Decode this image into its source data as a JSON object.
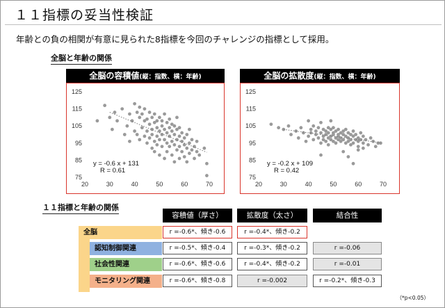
{
  "title": "１１指標の妥当性検証",
  "subtitle": "年齢との負の相関が有意に見られた8指標を今回のチャレンジの指標として採用。",
  "section1_label": "全脳と年齢の関係",
  "section2_label": "１１指標と年齢の関係",
  "charts": [
    {
      "title_main": "全脳の容積値",
      "title_sub": "(縦：指数、横：年齢)",
      "equation": "y = -0.6 x + 131",
      "r_text": "R = 0.61"
    },
    {
      "title_main": "全脳の拡散度",
      "title_sub": "(縦：指数、横：年齢)",
      "equation": "y = -0.2 x + 109",
      "r_text": "R = 0.42"
    }
  ],
  "chart_data": [
    {
      "type": "scatter",
      "title": "全脳の容積値(縦：指数、横：年齢)",
      "xlabel": "",
      "ylabel": "",
      "xlim": [
        20,
        70
      ],
      "ylim": [
        75,
        125
      ],
      "xticks": [
        20,
        30,
        40,
        50,
        60,
        70
      ],
      "yticks": [
        75,
        85,
        95,
        105,
        115,
        125
      ],
      "trendline": {
        "slope": -0.6,
        "intercept": 131,
        "style": "dotted"
      },
      "points": [
        [
          25,
          108
        ],
        [
          28,
          117
        ],
        [
          30,
          110
        ],
        [
          31,
          103
        ],
        [
          32,
          113
        ],
        [
          33,
          108
        ],
        [
          35,
          115
        ],
        [
          36,
          100
        ],
        [
          37,
          105
        ],
        [
          38,
          96
        ],
        [
          38,
          112
        ],
        [
          39,
          108
        ],
        [
          40,
          118
        ],
        [
          40,
          102
        ],
        [
          41,
          113
        ],
        [
          41,
          100
        ],
        [
          42,
          110
        ],
        [
          42,
          97
        ],
        [
          42,
          116
        ],
        [
          43,
          104
        ],
        [
          43,
          112
        ],
        [
          44,
          99
        ],
        [
          44,
          108
        ],
        [
          44,
          115
        ],
        [
          45,
          102
        ],
        [
          45,
          95
        ],
        [
          45,
          109
        ],
        [
          46,
          106
        ],
        [
          46,
          113
        ],
        [
          46,
          98
        ],
        [
          47,
          103
        ],
        [
          47,
          92
        ],
        [
          47,
          110
        ],
        [
          47,
          100
        ],
        [
          48,
          107
        ],
        [
          48,
          96
        ],
        [
          48,
          112
        ],
        [
          48,
          90
        ],
        [
          49,
          104
        ],
        [
          49,
          99
        ],
        [
          49,
          108
        ],
        [
          49,
          94
        ],
        [
          50,
          102
        ],
        [
          50,
          97
        ],
        [
          50,
          110
        ],
        [
          50,
          88
        ],
        [
          51,
          105
        ],
        [
          51,
          100
        ],
        [
          51,
          93
        ],
        [
          51,
          108
        ],
        [
          52,
          103
        ],
        [
          52,
          97
        ],
        [
          52,
          86
        ],
        [
          52,
          112
        ],
        [
          53,
          101
        ],
        [
          53,
          95
        ],
        [
          53,
          107
        ],
        [
          53,
          90
        ],
        [
          54,
          104
        ],
        [
          54,
          99
        ],
        [
          54,
          93
        ],
        [
          54,
          109
        ],
        [
          55,
          102
        ],
        [
          55,
          96
        ],
        [
          55,
          88
        ],
        [
          55,
          106
        ],
        [
          56,
          100
        ],
        [
          56,
          94
        ],
        [
          56,
          84
        ],
        [
          56,
          105
        ],
        [
          57,
          103
        ],
        [
          57,
          97
        ],
        [
          57,
          91
        ],
        [
          57,
          110
        ],
        [
          58,
          99
        ],
        [
          58,
          93
        ],
        [
          58,
          86
        ],
        [
          58,
          104
        ],
        [
          59,
          96
        ],
        [
          59,
          101
        ],
        [
          59,
          90
        ],
        [
          60,
          94
        ],
        [
          60,
          98
        ],
        [
          60,
          87
        ],
        [
          61,
          92
        ],
        [
          61,
          100
        ],
        [
          61,
          84
        ],
        [
          62,
          95
        ],
        [
          62,
          89
        ],
        [
          62,
          103
        ],
        [
          63,
          91
        ],
        [
          63,
          97
        ],
        [
          64,
          86
        ],
        [
          64,
          93
        ],
        [
          65,
          90
        ],
        [
          65,
          96
        ],
        [
          66,
          88
        ],
        [
          68,
          92
        ],
        [
          69,
          83
        ],
        [
          69,
          76
        ]
      ]
    },
    {
      "type": "scatter",
      "title": "全脳の拡散度(縦：指数、横：年齢)",
      "xlabel": "",
      "ylabel": "",
      "xlim": [
        20,
        70
      ],
      "ylim": [
        75,
        125
      ],
      "xticks": [
        20,
        30,
        40,
        50,
        60,
        70
      ],
      "yticks": [
        75,
        85,
        95,
        105,
        115,
        125
      ],
      "trendline": {
        "slope": -0.2,
        "intercept": 109,
        "style": "dotted"
      },
      "points": [
        [
          25,
          106
        ],
        [
          28,
          104
        ],
        [
          30,
          103
        ],
        [
          32,
          105
        ],
        [
          33,
          100
        ],
        [
          35,
          102
        ],
        [
          36,
          98
        ],
        [
          37,
          104
        ],
        [
          38,
          101
        ],
        [
          39,
          96
        ],
        [
          40,
          108
        ],
        [
          40,
          99
        ],
        [
          41,
          103
        ],
        [
          41,
          101
        ],
        [
          42,
          97
        ],
        [
          42,
          105
        ],
        [
          43,
          100
        ],
        [
          43,
          102
        ],
        [
          44,
          98
        ],
        [
          44,
          104
        ],
        [
          45,
          101
        ],
        [
          45,
          95
        ],
        [
          45,
          107
        ],
        [
          46,
          99
        ],
        [
          46,
          103
        ],
        [
          46,
          97
        ],
        [
          47,
          100
        ],
        [
          47,
          102
        ],
        [
          47,
          96
        ],
        [
          48,
          104
        ],
        [
          48,
          98
        ],
        [
          48,
          101
        ],
        [
          48,
          94
        ],
        [
          49,
          99
        ],
        [
          49,
          103
        ],
        [
          49,
          97
        ],
        [
          49,
          108
        ],
        [
          50,
          101
        ],
        [
          50,
          96
        ],
        [
          50,
          100
        ],
        [
          50,
          104
        ],
        [
          51,
          98
        ],
        [
          51,
          102
        ],
        [
          51,
          95
        ],
        [
          52,
          100
        ],
        [
          52,
          97
        ],
        [
          52,
          103
        ],
        [
          52,
          99
        ],
        [
          53,
          101
        ],
        [
          53,
          96
        ],
        [
          53,
          98
        ],
        [
          54,
          102
        ],
        [
          54,
          97
        ],
        [
          54,
          100
        ],
        [
          55,
          95
        ],
        [
          55,
          99
        ],
        [
          55,
          103
        ],
        [
          56,
          98
        ],
        [
          56,
          101
        ],
        [
          56,
          96
        ],
        [
          57,
          100
        ],
        [
          57,
          94
        ],
        [
          57,
          97
        ],
        [
          58,
          99
        ],
        [
          58,
          102
        ],
        [
          58,
          95
        ],
        [
          59,
          97
        ],
        [
          59,
          100
        ],
        [
          60,
          96
        ],
        [
          60,
          98
        ],
        [
          60,
          93
        ],
        [
          61,
          101
        ],
        [
          61,
          97
        ],
        [
          62,
          95
        ],
        [
          62,
          99
        ],
        [
          63,
          97
        ],
        [
          64,
          94
        ],
        [
          65,
          98
        ],
        [
          66,
          96
        ],
        [
          67,
          93
        ],
        [
          68,
          95
        ],
        [
          69,
          95
        ],
        [
          56,
          87
        ],
        [
          58,
          83
        ],
        [
          54,
          90
        ],
        [
          62,
          92
        ],
        [
          45,
          88
        ],
        [
          60,
          91
        ]
      ]
    }
  ],
  "table": {
    "headers": [
      "容積値（厚さ）",
      "拡散度（太さ）",
      "結合性"
    ],
    "rows": [
      {
        "label": "全脳",
        "volume": "r =-0.6*、傾き-0.6",
        "diffusion": "r =-0.4*、傾き-0.2",
        "connectivity": "",
        "color": "#fbd58a"
      },
      {
        "label": "認知制御関連",
        "volume": "r =-0.5*、傾き-0.4",
        "diffusion": "r =-0.3*、傾き-0.2",
        "connectivity": "r =-0.06",
        "color": "#8fb1e0"
      },
      {
        "label": "社会性関連",
        "volume": "r =-0.6*、傾き-0.6",
        "diffusion": "r =-0.4*、傾き-0.2",
        "connectivity": "r =-0.01",
        "color": "#9fd08a"
      },
      {
        "label": "モニタリング関連",
        "volume": "r =-0.6*、傾き-0.8",
        "diffusion": "r =-0.002",
        "connectivity": "r =-0.2*、傾き-0.3",
        "color": "#f4b08a"
      }
    ]
  },
  "footnote": "（*p<0.05）"
}
